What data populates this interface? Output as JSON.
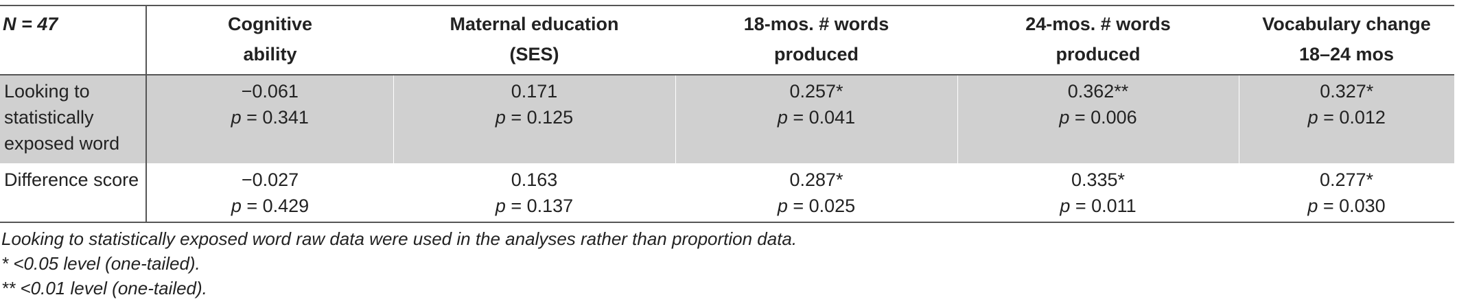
{
  "table": {
    "header": [
      [
        "N = 47"
      ],
      [
        "Cognitive",
        "ability"
      ],
      [
        "Maternal education",
        "(SES)"
      ],
      [
        "18-mos. # words",
        "produced"
      ],
      [
        "24-mos. # words",
        "produced"
      ],
      [
        "Vocabulary change",
        "18–24 mos"
      ]
    ],
    "rows": [
      {
        "label": "Looking to statistically exposed word",
        "cells": [
          {
            "r": "−0.061",
            "p": "p = 0.341"
          },
          {
            "r": "0.171",
            "p": "p = 0.125"
          },
          {
            "r": "0.257*",
            "p": "p = 0.041"
          },
          {
            "r": "0.362**",
            "p": "p = 0.006"
          },
          {
            "r": "0.327*",
            "p": "p = 0.012"
          }
        ]
      },
      {
        "label": "Difference score",
        "cells": [
          {
            "r": "−0.027",
            "p": "p = 0.429"
          },
          {
            "r": "0.163",
            "p": "p = 0.137"
          },
          {
            "r": "0.287*",
            "p": "p = 0.025"
          },
          {
            "r": "0.335*",
            "p": "p = 0.011"
          },
          {
            "r": "0.277*",
            "p": "p = 0.030"
          }
        ]
      }
    ],
    "notes": [
      "Looking to statistically exposed word raw data were used in the analyses rather than proportion data.",
      "* <0.05 level (one-tailed).",
      "** <0.01 level (one-tailed)."
    ]
  }
}
